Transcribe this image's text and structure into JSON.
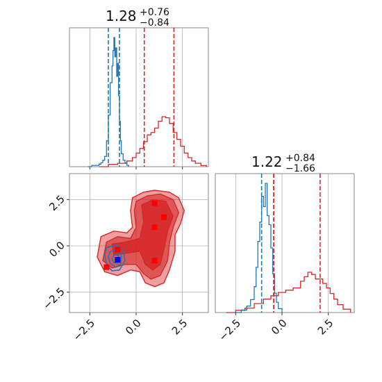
{
  "chart_data": {
    "type": "corner",
    "colors": {
      "blue": "#1f77b4",
      "red": "#d62728",
      "blue_marker": "#0000ff",
      "red_marker": "#ff0000",
      "grid": "#b0b0b0"
    },
    "axis_range": [
      -3.6,
      3.9
    ],
    "ticks": [
      -2.5,
      0.0,
      2.5
    ],
    "tick_labels": [
      "−2.5",
      "0.0",
      "2.5"
    ],
    "panels": {
      "param1_hist": {
        "title_value": "1.28",
        "title_plus": "+0.76",
        "title_minus": "−0.84",
        "blue_quantiles": [
          -1.5,
          -0.9
        ],
        "red_quantiles": [
          0.44,
          2.04
        ],
        "blue_hist": {
          "x": [
            -2.6,
            -2.4,
            -2.2,
            -2.0,
            -1.9,
            -1.8,
            -1.7,
            -1.6,
            -1.5,
            -1.4,
            -1.3,
            -1.25,
            -1.2,
            -1.15,
            -1.1,
            -1.05,
            -1.0,
            -0.95,
            -0.9,
            -0.85,
            -0.8,
            -0.7,
            -0.6,
            -0.5,
            -0.4
          ],
          "y": [
            0.0,
            0.01,
            0.01,
            0.02,
            0.03,
            0.05,
            0.08,
            0.2,
            0.4,
            0.65,
            0.78,
            0.9,
            1.0,
            0.85,
            0.92,
            0.7,
            0.8,
            0.55,
            0.35,
            0.2,
            0.1,
            0.05,
            0.03,
            0.01,
            0.0
          ]
        },
        "red_hist": {
          "x": [
            -2.0,
            -1.5,
            -1.0,
            -0.5,
            -0.2,
            0.0,
            0.2,
            0.4,
            0.6,
            0.8,
            1.0,
            1.2,
            1.4,
            1.6,
            1.8,
            2.0,
            2.2,
            2.4,
            2.6,
            2.8,
            3.0,
            3.2,
            3.5,
            3.8
          ],
          "y": [
            0.0,
            0.02,
            0.03,
            0.05,
            0.08,
            0.12,
            0.16,
            0.22,
            0.28,
            0.3,
            0.34,
            0.4,
            0.44,
            0.43,
            0.38,
            0.3,
            0.24,
            0.18,
            0.12,
            0.08,
            0.05,
            0.03,
            0.01,
            0.0
          ]
        }
      },
      "param2_hist": {
        "title_value": "1.22",
        "title_plus": "+0.84",
        "title_minus": "−1.66",
        "blue_quantiles": [
          -1.1,
          -0.45
        ],
        "red_quantiles": [
          -0.44,
          2.06
        ],
        "blue_hist": {
          "x": [
            -2.6,
            -2.2,
            -1.9,
            -1.7,
            -1.5,
            -1.4,
            -1.3,
            -1.2,
            -1.1,
            -1.0,
            -0.9,
            -0.8,
            -0.7,
            -0.6,
            -0.5,
            -0.4,
            -0.3,
            -0.2,
            0.0
          ],
          "y": [
            0.0,
            0.02,
            0.05,
            0.1,
            0.2,
            0.35,
            0.55,
            0.7,
            0.9,
            0.82,
            1.0,
            0.75,
            0.68,
            0.5,
            0.3,
            0.15,
            0.08,
            0.03,
            0.0
          ]
        },
        "red_hist": {
          "x": [
            -3.0,
            -2.5,
            -2.0,
            -1.5,
            -1.0,
            -0.6,
            -0.2,
            0.2,
            0.6,
            1.0,
            1.2,
            1.4,
            1.6,
            1.8,
            2.0,
            2.2,
            2.4,
            2.6,
            2.8,
            3.0,
            3.3,
            3.7
          ],
          "y": [
            0.0,
            0.02,
            0.04,
            0.08,
            0.12,
            0.15,
            0.18,
            0.2,
            0.22,
            0.28,
            0.32,
            0.36,
            0.34,
            0.3,
            0.3,
            0.26,
            0.22,
            0.17,
            0.12,
            0.07,
            0.03,
            0.0
          ]
        }
      },
      "joint": {
        "blue_marker": [
          -1.0,
          -0.75
        ],
        "red_markers": [
          [
            -1.6,
            -1.15
          ],
          [
            -1.0,
            -0.2
          ],
          [
            1.0,
            2.3
          ],
          [
            1.5,
            1.55
          ],
          [
            1.0,
            1.0
          ],
          [
            1.0,
            -0.8
          ]
        ],
        "red_contours": [
          [
            [
              -0.2,
              2.6
            ],
            [
              0.4,
              2.9
            ],
            [
              1.0,
              3.0
            ],
            [
              1.8,
              2.9
            ],
            [
              2.3,
              2.6
            ],
            [
              2.6,
              1.9
            ],
            [
              2.4,
              1.2
            ],
            [
              2.1,
              0.6
            ],
            [
              2.1,
              -0.3
            ],
            [
              1.8,
              -1.3
            ],
            [
              1.5,
              -2.0
            ],
            [
              1.0,
              -2.2
            ],
            [
              0.5,
              -2.0
            ],
            [
              0.2,
              -1.4
            ],
            [
              -0.3,
              -1.3
            ],
            [
              -1.0,
              -1.6
            ],
            [
              -1.7,
              -1.4
            ],
            [
              -2.1,
              -0.6
            ],
            [
              -1.9,
              0.5
            ],
            [
              -1.2,
              0.8
            ],
            [
              -0.5,
              0.7
            ],
            [
              -0.2,
              1.0
            ],
            [
              -0.3,
              1.9
            ]
          ],
          [
            [
              0.0,
              2.4
            ],
            [
              0.6,
              2.7
            ],
            [
              1.3,
              2.8
            ],
            [
              2.0,
              2.5
            ],
            [
              2.3,
              1.8
            ],
            [
              2.0,
              1.0
            ],
            [
              1.8,
              0.2
            ],
            [
              1.7,
              -0.8
            ],
            [
              1.3,
              -1.6
            ],
            [
              0.8,
              -1.8
            ],
            [
              0.4,
              -1.5
            ],
            [
              0.0,
              -1.0
            ],
            [
              -0.6,
              -1.0
            ],
            [
              -1.3,
              -1.2
            ],
            [
              -1.8,
              -0.8
            ],
            [
              -1.6,
              0.2
            ],
            [
              -1.0,
              0.5
            ],
            [
              -0.3,
              0.4
            ],
            [
              0.0,
              1.0
            ],
            [
              -0.1,
              1.9
            ]
          ],
          [
            [
              0.3,
              2.2
            ],
            [
              0.9,
              2.5
            ],
            [
              1.6,
              2.4
            ],
            [
              2.0,
              1.6
            ],
            [
              1.7,
              0.8
            ],
            [
              1.5,
              -0.2
            ],
            [
              1.3,
              -1.0
            ],
            [
              0.9,
              -1.3
            ],
            [
              0.5,
              -1.0
            ],
            [
              0.2,
              -0.3
            ],
            [
              -0.6,
              -0.4
            ],
            [
              -1.2,
              -0.5
            ],
            [
              -1.3,
              0.1
            ],
            [
              -0.6,
              0.2
            ],
            [
              0.2,
              0.4
            ],
            [
              0.4,
              1.3
            ]
          ]
        ],
        "blue_contours": [
          [
            [
              -1.6,
              -0.1
            ],
            [
              -1.1,
              0.05
            ],
            [
              -0.7,
              -0.2
            ],
            [
              -0.6,
              -0.8
            ],
            [
              -0.9,
              -1.3
            ],
            [
              -1.3,
              -1.35
            ],
            [
              -1.6,
              -1.0
            ],
            [
              -1.7,
              -0.5
            ]
          ],
          [
            [
              -1.4,
              -0.3
            ],
            [
              -1.0,
              -0.2
            ],
            [
              -0.8,
              -0.5
            ],
            [
              -0.85,
              -1.0
            ],
            [
              -1.1,
              -1.15
            ],
            [
              -1.4,
              -0.95
            ],
            [
              -1.5,
              -0.6
            ]
          ],
          [
            [
              -1.2,
              -0.5
            ],
            [
              -1.0,
              -0.45
            ],
            [
              -0.9,
              -0.7
            ],
            [
              -1.0,
              -0.95
            ],
            [
              -1.2,
              -0.9
            ],
            [
              -1.3,
              -0.7
            ]
          ]
        ]
      }
    }
  }
}
